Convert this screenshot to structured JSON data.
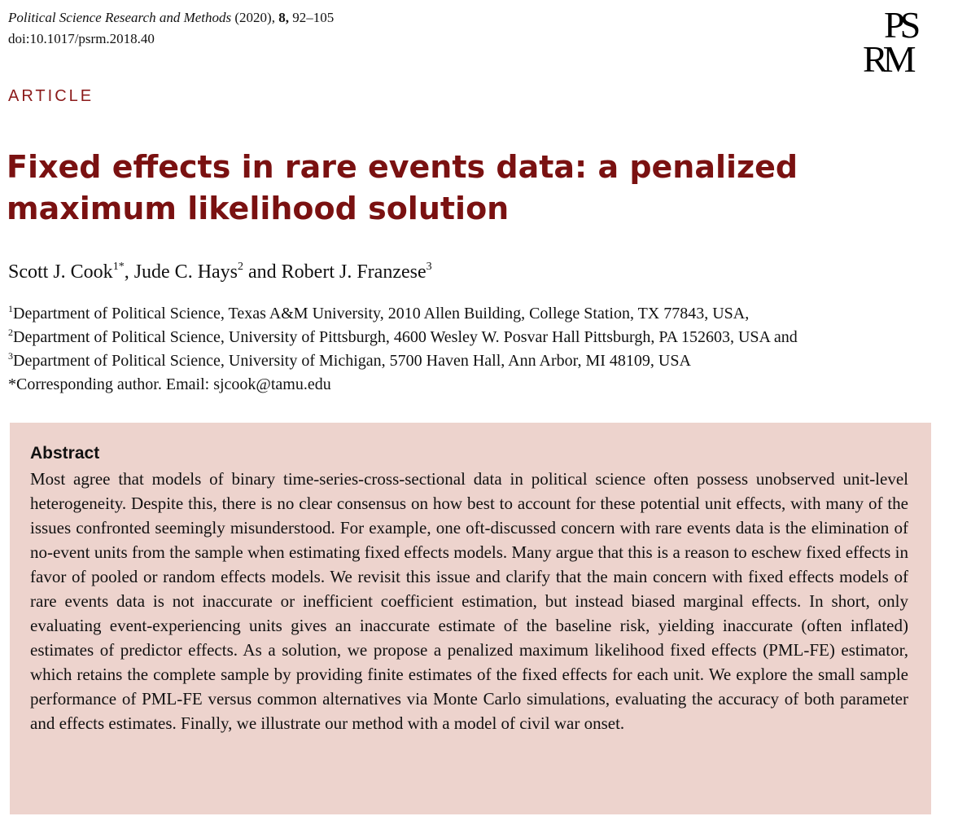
{
  "header": {
    "journal_name": "Political Science Research and Methods",
    "year": "(2020),",
    "volume": "8,",
    "pages": "92–105",
    "doi": "doi:10.1017/psrm.2018.40",
    "logo_line1": "PS",
    "logo_line2": "RM"
  },
  "article_label": "ARTICLE",
  "title": "Fixed effects in rare events data: a penalized maximum likelihood solution",
  "authors": {
    "a1": "Scott J. Cook",
    "a1_sup": "1*",
    "sep1": ", ",
    "a2": "Jude C. Hays",
    "a2_sup": "2",
    "sep2": " and ",
    "a3": "Robert J. Franzese",
    "a3_sup": "3"
  },
  "affiliations": [
    {
      "sup": "1",
      "text": "Department of Political Science, Texas A&M University, 2010 Allen Building, College Station, TX 77843, USA,"
    },
    {
      "sup": "2",
      "text": "Department of Political Science, University of Pittsburgh, 4600 Wesley W. Posvar Hall Pittsburgh, PA 152603, USA and"
    },
    {
      "sup": "3",
      "text": "Department of Political Science, University of Michigan, 5700 Haven Hall, Ann Arbor, MI 48109, USA"
    },
    {
      "sup": "",
      "text": "*Corresponding author. Email: sjcook@tamu.edu"
    }
  ],
  "abstract": {
    "heading": "Abstract",
    "text": "Most agree that models of binary time-series-cross-sectional data in political science often possess unobserved unit-level heterogeneity. Despite this, there is no clear consensus on how best to account for these potential unit effects, with many of the issues confronted seemingly misunderstood. For example, one oft-discussed concern with rare events data is the elimination of no-event units from the sample when estimating fixed effects models. Many argue that this is a reason to eschew fixed effects in favor of pooled or random effects models. We revisit this issue and clarify that the main concern with fixed effects models of rare events data is not inaccurate or inefficient coefficient estimation, but instead biased marginal effects. In short, only evaluating event-experiencing units gives an inaccurate estimate of the baseline risk, yielding inaccurate (often inflated) estimates of predictor effects. As a solution, we propose a penalized maximum likelihood fixed effects (PML-FE) estimator, which retains the complete sample by providing finite estimates of the fixed effects for each unit. We explore the small sample performance of PML-FE versus common alternatives via Monte Carlo simulations, evaluating the accuracy of both parameter and effects estimates. Finally, we illustrate our method with a model of civil war onset."
  },
  "colors": {
    "title": "#7a1111",
    "article_label": "#8b1a1a",
    "abstract_bg": "#edd3cd"
  }
}
